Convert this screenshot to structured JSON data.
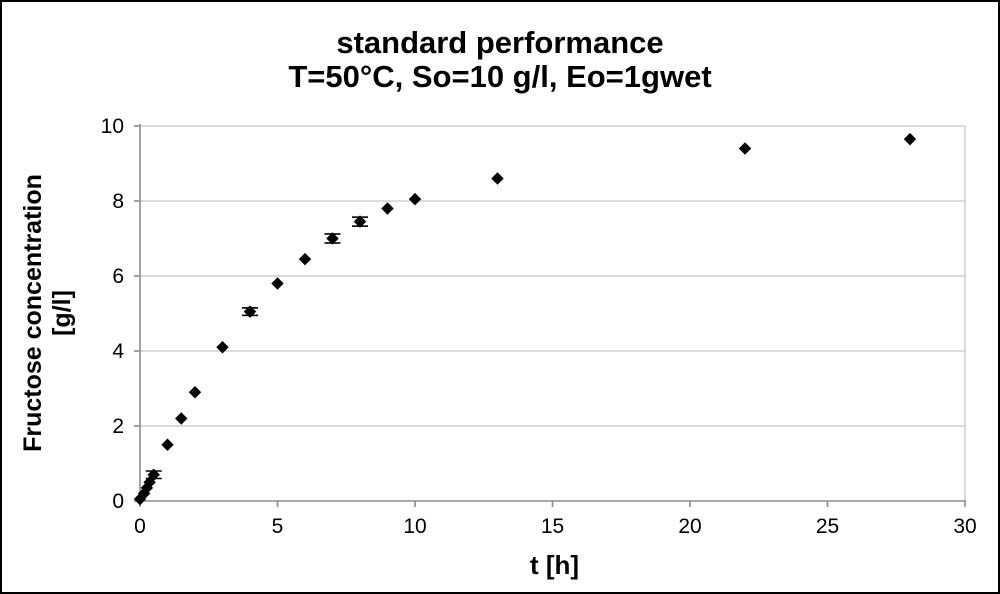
{
  "title": {
    "line1": "standard performance",
    "line2": "T=50°C, So=10 g/l, Eo=1gwet"
  },
  "chart_data": {
    "type": "scatter",
    "title": "standard performance",
    "subtitle": "T=50°C, So=10 g/l, Eo=1gwet",
    "xlabel": "t [h]",
    "ylabel_line1": "Fructose concentration",
    "ylabel_line2": "[g/l]",
    "xlim": [
      0,
      30
    ],
    "ylim": [
      0,
      10
    ],
    "x_ticks": [
      0,
      5,
      10,
      15,
      20,
      25,
      30
    ],
    "y_ticks": [
      0,
      2,
      4,
      6,
      8,
      10
    ],
    "grid": "horizontal",
    "legend": "none",
    "marker": "diamond",
    "colors": {
      "marker": "#000000",
      "gridline": "#c8c8c8",
      "axis": "#8c8c8c",
      "text": "#000000",
      "background": "#ffffff",
      "frame": "#000000"
    },
    "points": [
      {
        "x": 0,
        "y": 0.05
      },
      {
        "x": 0.15,
        "y": 0.2
      },
      {
        "x": 0.25,
        "y": 0.35
      },
      {
        "x": 0.35,
        "y": 0.5
      },
      {
        "x": 0.5,
        "y": 0.7,
        "yerr": 0.1
      },
      {
        "x": 1,
        "y": 1.5
      },
      {
        "x": 1.5,
        "y": 2.2
      },
      {
        "x": 2,
        "y": 2.9
      },
      {
        "x": 3,
        "y": 4.1
      },
      {
        "x": 4,
        "y": 5.05,
        "yerr": 0.1
      },
      {
        "x": 5,
        "y": 5.8
      },
      {
        "x": 6,
        "y": 6.45
      },
      {
        "x": 7,
        "y": 7.0,
        "yerr": 0.12
      },
      {
        "x": 8,
        "y": 7.45,
        "yerr": 0.12
      },
      {
        "x": 9,
        "y": 7.8
      },
      {
        "x": 10,
        "y": 8.05
      },
      {
        "x": 13,
        "y": 8.6
      },
      {
        "x": 22,
        "y": 9.4
      },
      {
        "x": 28,
        "y": 9.65
      }
    ]
  }
}
